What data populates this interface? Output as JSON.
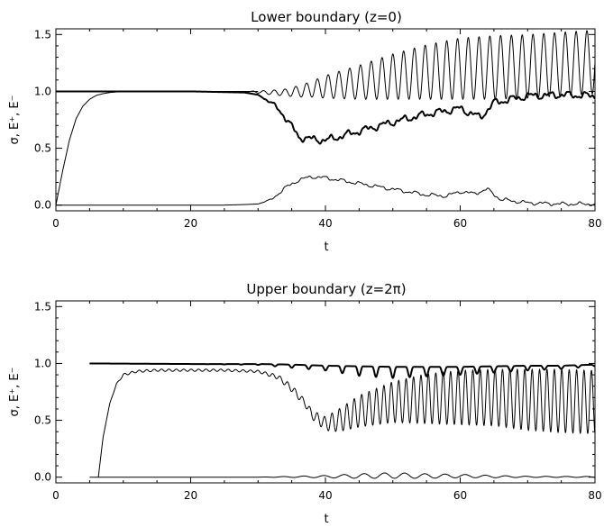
{
  "chart_data": [
    {
      "type": "line",
      "title": "Lower boundary (z=0)",
      "xlabel": "t",
      "ylabel": "σ, E⁺, E⁻",
      "xlim": [
        0,
        80
      ],
      "ylim": [
        -0.05,
        1.55
      ],
      "xticks": [
        "0",
        "20",
        "40",
        "60",
        "80"
      ],
      "yticks": [
        "0.0",
        "0.5",
        "1.0",
        "1.5"
      ],
      "legend": "none",
      "grid": false,
      "series": [
        {
          "role": "flat-then-rising-oscillation",
          "style": "thin",
          "x": [
            0,
            10,
            20,
            28,
            30,
            32,
            34,
            36,
            38,
            40,
            45,
            50,
            55,
            60,
            65,
            70,
            75,
            80
          ],
          "y": [
            1.0,
            1.0,
            1.0,
            1.0,
            0.995,
            0.99,
            0.99,
            1.0,
            1.02,
            1.04,
            1.08,
            1.13,
            1.17,
            1.2,
            1.21,
            1.22,
            1.24,
            1.26
          ],
          "oscillation_amplitude": [
            0,
            0,
            0,
            0,
            0.01,
            0.02,
            0.03,
            0.05,
            0.07,
            0.1,
            0.15,
            0.2,
            0.24,
            0.27,
            0.28,
            0.28,
            0.28,
            0.28
          ],
          "oscillation_period": 1.6
        },
        {
          "role": "dip-and-recover",
          "style": "thick",
          "x": [
            0,
            10,
            20,
            28,
            30,
            32,
            34,
            36,
            38,
            40,
            42,
            45,
            50,
            55,
            60,
            63,
            65,
            70,
            75,
            80
          ],
          "y": [
            1.0,
            1.0,
            1.0,
            0.99,
            0.97,
            0.9,
            0.78,
            0.6,
            0.58,
            0.57,
            0.6,
            0.65,
            0.73,
            0.8,
            0.85,
            0.77,
            0.9,
            0.96,
            0.97,
            0.96
          ],
          "noise_amplitude": 0.04
        },
        {
          "role": "rise-from-zero",
          "style": "thin",
          "x": [
            0,
            1,
            2,
            3,
            4,
            5,
            6,
            7,
            8,
            10,
            15,
            20,
            28,
            30,
            80
          ],
          "y": [
            0.0,
            0.3,
            0.57,
            0.76,
            0.87,
            0.93,
            0.965,
            0.98,
            0.99,
            1.0,
            1.0,
            1.0,
            1.0,
            1.0,
            1.0
          ],
          "end_x": 30
        },
        {
          "role": "bump",
          "style": "thin",
          "x": [
            0,
            25,
            28,
            30,
            32,
            34,
            36,
            38,
            40,
            42,
            45,
            50,
            55,
            58,
            60,
            62,
            64,
            66,
            70,
            75,
            80
          ],
          "y": [
            0.0,
            0.0,
            0.005,
            0.01,
            0.05,
            0.15,
            0.22,
            0.25,
            0.24,
            0.22,
            0.19,
            0.14,
            0.09,
            0.08,
            0.12,
            0.1,
            0.14,
            0.05,
            0.02,
            0.01,
            0.01
          ],
          "noise_amplitude": 0.02
        }
      ]
    },
    {
      "type": "line",
      "title": "Upper boundary (z=2π)",
      "xlabel": "t",
      "ylabel": "σ, E⁺, E⁻",
      "xlim": [
        0,
        80
      ],
      "ylim": [
        -0.05,
        1.55
      ],
      "xticks": [
        "0",
        "20",
        "40",
        "60",
        "80"
      ],
      "yticks": [
        "0.0",
        "0.5",
        "1.0",
        "1.5"
      ],
      "legend": "none",
      "grid": false,
      "series": [
        {
          "role": "near-one-with-dips",
          "style": "thick",
          "x": [
            5,
            20,
            30,
            35,
            40,
            45,
            50,
            55,
            60,
            65,
            70,
            75,
            80
          ],
          "y": [
            1.0,
            0.995,
            0.995,
            0.99,
            0.98,
            0.975,
            0.97,
            0.97,
            0.97,
            0.975,
            0.98,
            0.98,
            0.99
          ],
          "dip_amplitude": [
            0,
            0,
            0.005,
            0.02,
            0.03,
            0.06,
            0.07,
            0.06,
            0.05,
            0.04,
            0.03,
            0.02,
            0.01
          ],
          "oscillation_period": 2.5
        },
        {
          "role": "plateau-then-oscillation",
          "style": "thin",
          "x": [
            6.3,
            7,
            8,
            9,
            10,
            12,
            15,
            20,
            25,
            30,
            33,
            35,
            37,
            38,
            40,
            42,
            45,
            50,
            55,
            60,
            65,
            70,
            75,
            80
          ],
          "y": [
            0.0,
            0.35,
            0.65,
            0.82,
            0.9,
            0.93,
            0.94,
            0.94,
            0.94,
            0.93,
            0.88,
            0.78,
            0.65,
            0.55,
            0.47,
            0.5,
            0.58,
            0.66,
            0.69,
            0.7,
            0.7,
            0.68,
            0.67,
            0.66
          ],
          "oscillation_amplitude": [
            0,
            0,
            0,
            0.005,
            0.01,
            0.01,
            0.01,
            0.01,
            0.01,
            0.01,
            0.02,
            0.03,
            0.03,
            0.04,
            0.06,
            0.1,
            0.14,
            0.18,
            0.22,
            0.24,
            0.25,
            0.27,
            0.28,
            0.28
          ],
          "oscillation_period": 1.1
        },
        {
          "role": "near-zero",
          "style": "thin",
          "x": [
            5,
            30,
            40,
            45,
            50,
            55,
            60,
            65,
            70,
            80
          ],
          "y": [
            0.0,
            0.0,
            0.005,
            0.01,
            0.015,
            0.01,
            0.01,
            0.005,
            0.003,
            0.002
          ],
          "oscillation_amplitude": [
            0,
            0,
            0.01,
            0.02,
            0.025,
            0.02,
            0.015,
            0.01,
            0.005,
            0.004
          ],
          "oscillation_period": 3.0
        }
      ]
    }
  ]
}
